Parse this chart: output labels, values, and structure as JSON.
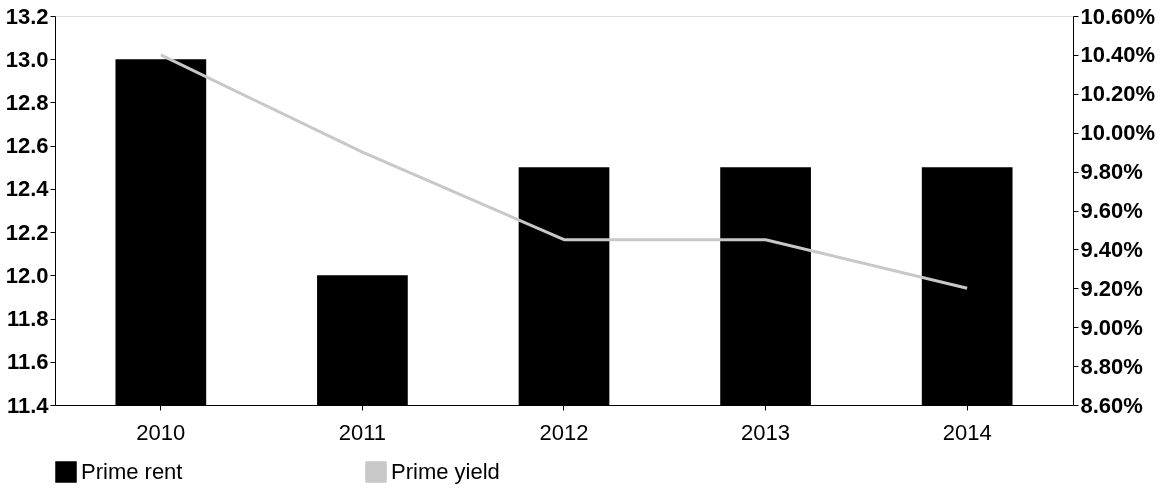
{
  "chart_data": {
    "type": "bar",
    "categories": [
      "2010",
      "2011",
      "2012",
      "2013",
      "2014"
    ],
    "series": [
      {
        "name": "Prime rent",
        "color": "#000000",
        "values": [
          13.0,
          12.0,
          12.5,
          12.5,
          12.5
        ]
      },
      {
        "name": "Prime yield",
        "type": "line",
        "axis": "y2",
        "color": "#c8c8c8",
        "values": [
          10.4,
          9.9,
          9.45,
          9.45,
          9.2
        ]
      }
    ],
    "ylim": [
      11.4,
      13.2
    ],
    "yticks": [
      {
        "value": 11.4,
        "label": "11.4"
      },
      {
        "value": 11.6,
        "label": "11.6"
      },
      {
        "value": 11.8,
        "label": "11.8"
      },
      {
        "value": 12.0,
        "label": "12.0"
      },
      {
        "value": 12.2,
        "label": "12.2"
      },
      {
        "value": 12.4,
        "label": "12.4"
      },
      {
        "value": 12.6,
        "label": "12.6"
      },
      {
        "value": 12.8,
        "label": "12.8"
      },
      {
        "value": 13.0,
        "label": "13.0"
      },
      {
        "value": 13.2,
        "label": "13.2"
      }
    ],
    "y2lim": [
      8.6,
      10.6
    ],
    "y2ticks": [
      {
        "value": 8.6,
        "label": "8.60%"
      },
      {
        "value": 8.8,
        "label": "8.80%"
      },
      {
        "value": 9.0,
        "label": "9.00%"
      },
      {
        "value": 9.2,
        "label": "9.20%"
      },
      {
        "value": 9.4,
        "label": "9.40%"
      },
      {
        "value": 9.6,
        "label": "9.60%"
      },
      {
        "value": 9.8,
        "label": "9.80%"
      },
      {
        "value": 10.0,
        "label": "10.00%"
      },
      {
        "value": 10.2,
        "label": "10.20%"
      },
      {
        "value": 10.4,
        "label": "10.40%"
      },
      {
        "value": 10.6,
        "label": "10.60%"
      }
    ],
    "grid": false,
    "legend": "bottom",
    "marker": "none",
    "line_style": "solid"
  }
}
